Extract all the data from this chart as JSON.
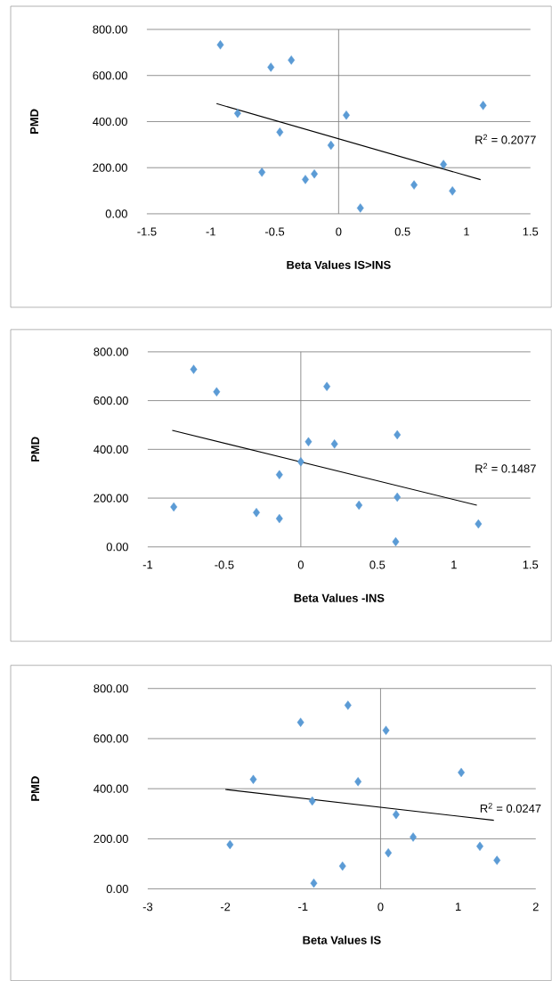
{
  "chart_data": [
    {
      "type": "scatter",
      "xlabel": "Beta Values IS>INS",
      "ylabel": "PMD",
      "marker": "diamond",
      "grid": "y",
      "xlim": [
        -1.5,
        1.5
      ],
      "xticks": [
        -1.5,
        -1,
        -0.5,
        0,
        0.5,
        1,
        1.5
      ],
      "ylim": [
        0,
        800
      ],
      "yticks": [
        {
          "value": 0,
          "label": "0.00"
        },
        {
          "value": 200,
          "label": "200.00"
        },
        {
          "value": 400,
          "label": "400.00"
        },
        {
          "value": 600,
          "label": "600.00"
        },
        {
          "value": 800,
          "label": "800.00"
        }
      ],
      "annotations": [
        "R$^{2}$ = 0.2077"
      ],
      "ref_lines": [
        {
          "axis": "x",
          "value": 0,
          "color": "#868686"
        }
      ],
      "series": [
        {
          "color": "#5b9bd5",
          "x": [
            -0.925,
            -0.53,
            -0.37,
            -0.79,
            -0.46,
            -0.06,
            -0.6,
            -0.26,
            -0.19,
            0.06,
            0.17,
            0.59,
            0.82,
            0.89,
            1.13
          ],
          "values": [
            733,
            636,
            667,
            436,
            354,
            297,
            180,
            149,
            173,
            428,
            25,
            125,
            214,
            99,
            470
          ]
        },
        {
          "type": "line",
          "marker": "none",
          "color": "#000000",
          "x": [
            -0.955,
            1.11
          ],
          "values": [
            478,
            148
          ]
        }
      ]
    },
    {
      "type": "scatter",
      "xlabel": "Beta Values -INS",
      "ylabel": "PMD",
      "marker": "diamond",
      "grid": "y",
      "xlim": [
        -1,
        1.5
      ],
      "xticks": [
        -1,
        -0.5,
        0,
        0.5,
        1,
        1.5
      ],
      "ylim": [
        0,
        800
      ],
      "yticks": [
        {
          "value": 0,
          "label": "0.00"
        },
        {
          "value": 200,
          "label": "200.00"
        },
        {
          "value": 400,
          "label": "400.00"
        },
        {
          "value": 600,
          "label": "600.00"
        },
        {
          "value": 800,
          "label": "800.00"
        }
      ],
      "annotations": [
        "R$^{2}$ = 0.1487"
      ],
      "ref_lines": [
        {
          "axis": "x",
          "value": 0,
          "color": "#868686"
        }
      ],
      "series": [
        {
          "color": "#5b9bd5",
          "x": [
            -0.7,
            -0.55,
            0.17,
            0.63,
            0.05,
            0.22,
            0.0,
            -0.14,
            -0.83,
            -0.29,
            -0.14,
            0.38,
            0.63,
            0.62,
            1.16
          ],
          "values": [
            728,
            636,
            658,
            460,
            431,
            422,
            349,
            296,
            164,
            141,
            116,
            171,
            204,
            21,
            94
          ]
        },
        {
          "type": "line",
          "marker": "none",
          "color": "#000000",
          "x": [
            -0.84,
            1.15
          ],
          "values": [
            478,
            171
          ]
        }
      ]
    },
    {
      "type": "scatter",
      "xlabel": "Beta Values IS",
      "ylabel": "PMD",
      "marker": "diamond",
      "grid": "y",
      "xlim": [
        -3,
        2
      ],
      "xticks": [
        -3,
        -2,
        -1,
        0,
        1,
        2
      ],
      "ylim": [
        0,
        800
      ],
      "yticks": [
        {
          "value": 0,
          "label": "0.00"
        },
        {
          "value": 200,
          "label": "200.00"
        },
        {
          "value": 400,
          "label": "400.00"
        },
        {
          "value": 600,
          "label": "600.00"
        },
        {
          "value": 800,
          "label": "800.00"
        }
      ],
      "annotations": [
        "R$^{2}$ = 0.0247"
      ],
      "ref_lines": [
        {
          "axis": "x",
          "value": 0,
          "color": "#868686"
        }
      ],
      "series": [
        {
          "color": "#5b9bd5",
          "x": [
            -0.42,
            -1.03,
            0.07,
            -1.64,
            -0.29,
            1.04,
            -0.88,
            0.2,
            -1.94,
            0.42,
            0.1,
            1.28,
            1.5,
            -0.49,
            -0.86
          ],
          "values": [
            733,
            665,
            633,
            437,
            428,
            465,
            351,
            297,
            177,
            207,
            144,
            170,
            114,
            91,
            23
          ]
        },
        {
          "type": "line",
          "marker": "none",
          "color": "#000000",
          "x": [
            -2.0,
            1.46
          ],
          "values": [
            397,
            274
          ]
        }
      ]
    }
  ]
}
